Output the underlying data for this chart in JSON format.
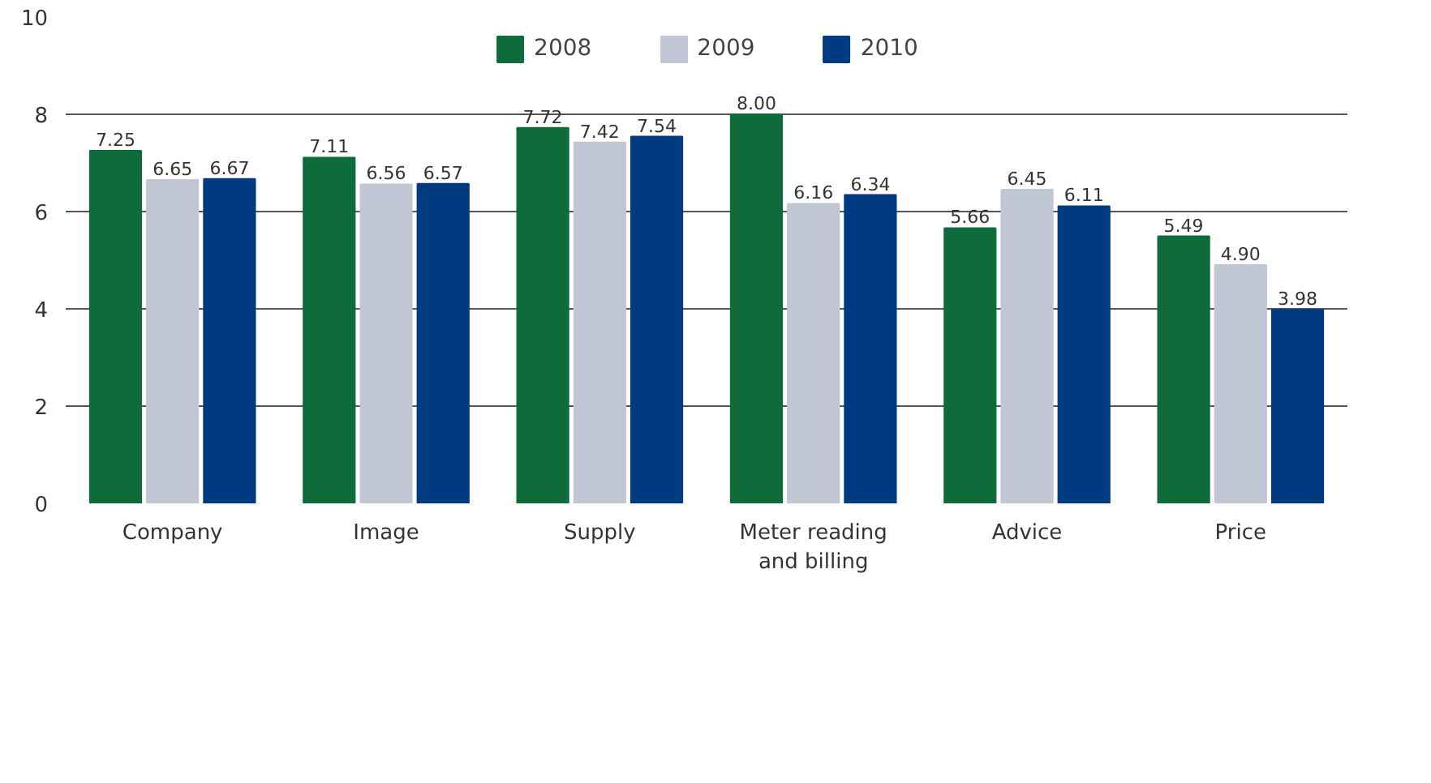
{
  "chart_data": {
    "type": "bar",
    "categories": [
      "Company",
      "Image",
      "Supply",
      "Meter reading and billing",
      "Advice",
      "Price"
    ],
    "series": [
      {
        "name": "2008",
        "color": "#0e6b3a",
        "values": [
          7.25,
          7.11,
          7.72,
          8.0,
          5.66,
          5.49
        ],
        "value_labels": [
          "7.25",
          "7.11",
          "7.72",
          "8.00",
          "5.66",
          "5.49"
        ]
      },
      {
        "name": "2009",
        "color": "#c1c6d4",
        "values": [
          6.65,
          6.56,
          7.42,
          6.16,
          6.45,
          4.9
        ],
        "value_labels": [
          "6.65",
          "6.56",
          "7.42",
          "6.16",
          "6.45",
          "4.90"
        ]
      },
      {
        "name": "2010",
        "color": "#003a80",
        "values": [
          6.67,
          6.57,
          7.54,
          6.34,
          6.11,
          3.98
        ],
        "value_labels": [
          "6.67",
          "6.57",
          "7.54",
          "6.34",
          "6.11",
          "3.98"
        ]
      }
    ],
    "ylim": [
      0,
      10
    ],
    "yticks": [
      0,
      2,
      4,
      6,
      8,
      10
    ],
    "grid": "y",
    "legend": "top"
  }
}
